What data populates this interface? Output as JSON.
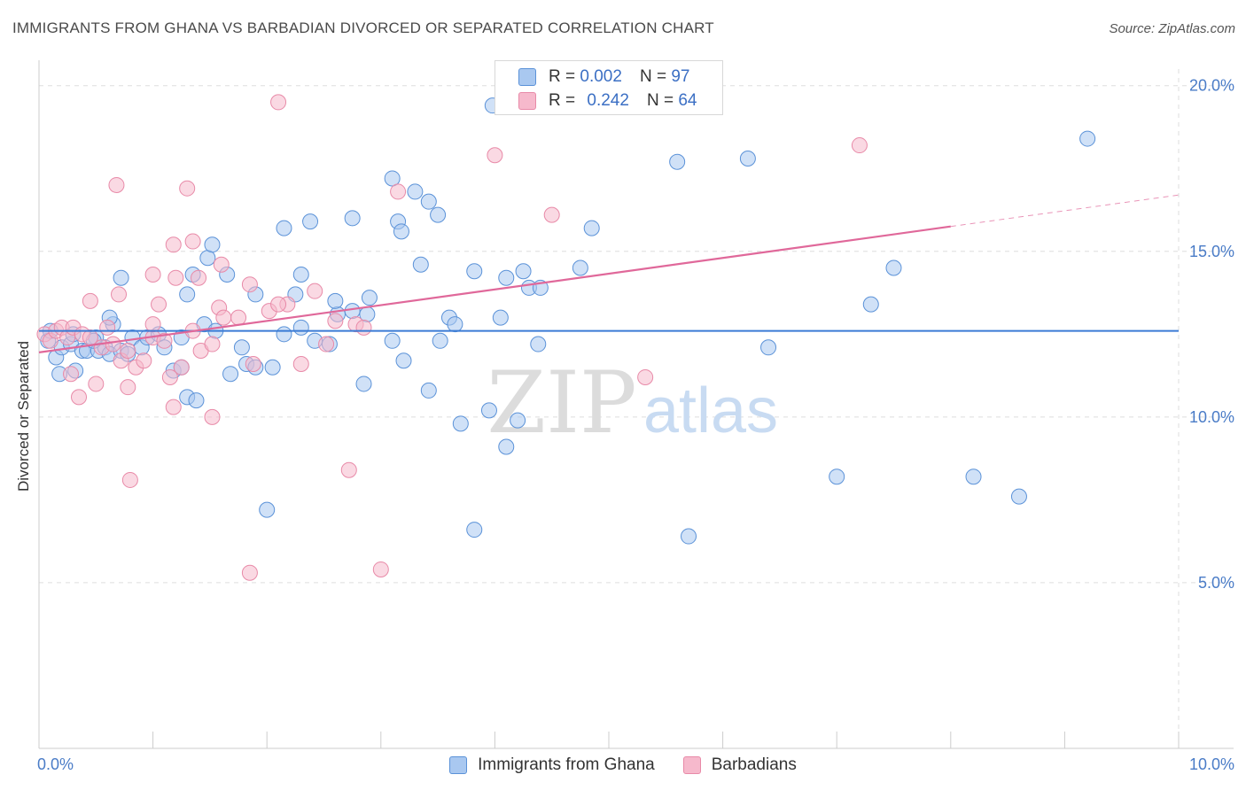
{
  "title": "IMMIGRANTS FROM GHANA VS BARBADIAN DIVORCED OR SEPARATED CORRELATION CHART",
  "source": "Source: ZipAtlas.com",
  "watermark": {
    "zip": "ZIP",
    "atlas": "atlas"
  },
  "colors": {
    "blue_fill": "#a9c8f0",
    "blue_stroke": "#5b92d8",
    "blue_line": "#3a7bd5",
    "pink_fill": "#f6b9cc",
    "pink_stroke": "#e88aa8",
    "pink_line": "#e0689a",
    "tick_text": "#4a7cc7",
    "grid": "#dddddd"
  },
  "legend": {
    "rows": [
      {
        "r_label": "R =",
        "r_value": "0.002",
        "n_label": "N =",
        "n_value": "97"
      },
      {
        "r_label": "R =",
        "r_value": "0.242",
        "n_label": "N =",
        "n_value": "64"
      }
    ]
  },
  "bottom_legend": [
    "Immigrants from Ghana",
    "Barbadians"
  ],
  "chart_data": {
    "type": "scatter",
    "title": "IMMIGRANTS FROM GHANA VS BARBADIAN DIVORCED OR SEPARATED CORRELATION CHART",
    "xlabel": "",
    "ylabel": "Divorced or Separated",
    "xlim": [
      0,
      10
    ],
    "ylim": [
      0,
      20.5
    ],
    "x_tick_labels": [
      {
        "value": 0,
        "label": "0.0%"
      },
      {
        "value": 10,
        "label": "10.0%"
      }
    ],
    "y_tick_labels": [
      {
        "value": 5,
        "label": "5.0%"
      },
      {
        "value": 10,
        "label": "10.0%"
      },
      {
        "value": 15,
        "label": "15.0%"
      },
      {
        "value": 20,
        "label": "20.0%"
      }
    ],
    "grid": true,
    "legend_position": "top-center",
    "series": [
      {
        "name": "Immigrants from Ghana",
        "trend": {
          "x0": 0,
          "y0": 12.6,
          "x1": 10,
          "y1": 12.6
        },
        "points": [
          [
            0.08,
            12.3
          ],
          [
            0.15,
            11.8
          ],
          [
            0.18,
            11.3
          ],
          [
            0.2,
            12.1
          ],
          [
            0.28,
            12.2
          ],
          [
            0.32,
            11.4
          ],
          [
            0.38,
            12.0
          ],
          [
            0.42,
            12.0
          ],
          [
            0.5,
            12.4
          ],
          [
            0.52,
            12.0
          ],
          [
            0.58,
            12.1
          ],
          [
            0.62,
            11.9
          ],
          [
            0.65,
            12.8
          ],
          [
            0.72,
            12.0
          ],
          [
            0.78,
            11.9
          ],
          [
            0.82,
            12.4
          ],
          [
            0.9,
            12.1
          ],
          [
            0.95,
            12.4
          ],
          [
            1.05,
            12.5
          ],
          [
            1.1,
            12.1
          ],
          [
            1.18,
            11.4
          ],
          [
            1.25,
            11.5
          ],
          [
            1.3,
            10.6
          ],
          [
            1.38,
            10.5
          ],
          [
            1.45,
            12.8
          ],
          [
            1.55,
            12.6
          ],
          [
            1.68,
            11.3
          ],
          [
            1.78,
            12.1
          ],
          [
            1.82,
            11.6
          ],
          [
            1.9,
            11.5
          ],
          [
            2.05,
            11.5
          ],
          [
            2.15,
            12.5
          ],
          [
            2.3,
            12.7
          ],
          [
            2.42,
            12.3
          ],
          [
            2.55,
            12.2
          ],
          [
            2.62,
            13.1
          ],
          [
            2.75,
            13.2
          ],
          [
            2.85,
            11.0
          ],
          [
            2.9,
            13.6
          ],
          [
            3.1,
            12.3
          ],
          [
            3.2,
            11.7
          ],
          [
            3.42,
            10.8
          ],
          [
            3.52,
            12.3
          ],
          [
            3.6,
            13.0
          ],
          [
            3.7,
            9.8
          ],
          [
            3.82,
            6.6
          ],
          [
            3.95,
            10.2
          ],
          [
            4.1,
            9.1
          ],
          [
            4.2,
            9.9
          ],
          [
            4.3,
            13.9
          ],
          [
            1.35,
            14.3
          ],
          [
            0.72,
            14.2
          ],
          [
            1.3,
            13.7
          ],
          [
            0.62,
            13.0
          ],
          [
            1.9,
            13.7
          ],
          [
            2.25,
            13.7
          ],
          [
            2.3,
            14.3
          ],
          [
            2.6,
            13.5
          ],
          [
            2.88,
            13.1
          ],
          [
            1.48,
            14.8
          ],
          [
            1.52,
            15.2
          ],
          [
            1.65,
            14.3
          ],
          [
            2.15,
            15.7
          ],
          [
            2.38,
            15.9
          ],
          [
            2.75,
            16.0
          ],
          [
            3.3,
            16.8
          ],
          [
            3.15,
            15.9
          ],
          [
            3.18,
            15.6
          ],
          [
            3.42,
            16.5
          ],
          [
            3.5,
            16.1
          ],
          [
            3.35,
            14.6
          ],
          [
            3.82,
            14.4
          ],
          [
            4.1,
            14.2
          ],
          [
            4.25,
            14.4
          ],
          [
            4.4,
            13.9
          ],
          [
            4.85,
            15.7
          ],
          [
            4.75,
            14.5
          ],
          [
            3.98,
            19.4
          ],
          [
            5.6,
            17.7
          ],
          [
            6.22,
            17.8
          ],
          [
            6.4,
            12.1
          ],
          [
            7.3,
            13.4
          ],
          [
            7.5,
            14.5
          ],
          [
            9.2,
            18.4
          ],
          [
            7.0,
            8.2
          ],
          [
            8.2,
            8.2
          ],
          [
            8.6,
            7.6
          ],
          [
            5.7,
            6.4
          ],
          [
            4.05,
            13.0
          ],
          [
            4.38,
            12.2
          ],
          [
            3.1,
            17.2
          ],
          [
            3.65,
            12.8
          ],
          [
            2.0,
            7.2
          ],
          [
            1.25,
            12.4
          ],
          [
            0.48,
            12.3
          ],
          [
            0.3,
            12.5
          ],
          [
            0.1,
            12.6
          ]
        ]
      },
      {
        "name": "Barbadians",
        "trend": {
          "x0": 0,
          "y0": 11.95,
          "x1": 8.0,
          "y1": 15.75,
          "ext_x1": 10,
          "ext_y1": 16.7
        },
        "points": [
          [
            0.05,
            12.5
          ],
          [
            0.1,
            12.3
          ],
          [
            0.15,
            12.6
          ],
          [
            0.2,
            12.7
          ],
          [
            0.25,
            12.4
          ],
          [
            0.3,
            12.7
          ],
          [
            0.38,
            12.5
          ],
          [
            0.45,
            12.4
          ],
          [
            0.5,
            11.0
          ],
          [
            0.55,
            12.1
          ],
          [
            0.6,
            12.7
          ],
          [
            0.65,
            12.2
          ],
          [
            0.72,
            11.7
          ],
          [
            0.78,
            12.0
          ],
          [
            0.85,
            11.5
          ],
          [
            0.92,
            11.7
          ],
          [
            1.0,
            12.4
          ],
          [
            1.05,
            13.4
          ],
          [
            1.1,
            12.3
          ],
          [
            1.18,
            10.3
          ],
          [
            1.25,
            11.5
          ],
          [
            1.35,
            12.6
          ],
          [
            1.42,
            12.0
          ],
          [
            1.52,
            12.2
          ],
          [
            1.58,
            13.3
          ],
          [
            1.62,
            13.0
          ],
          [
            1.75,
            13.0
          ],
          [
            1.88,
            11.6
          ],
          [
            2.02,
            13.2
          ],
          [
            2.18,
            13.4
          ],
          [
            2.3,
            11.6
          ],
          [
            2.42,
            13.8
          ],
          [
            2.52,
            12.2
          ],
          [
            2.6,
            12.9
          ],
          [
            2.78,
            12.8
          ],
          [
            2.85,
            12.7
          ],
          [
            0.45,
            13.5
          ],
          [
            0.7,
            13.7
          ],
          [
            1.0,
            14.3
          ],
          [
            1.2,
            14.2
          ],
          [
            1.4,
            14.2
          ],
          [
            1.6,
            14.6
          ],
          [
            1.35,
            15.3
          ],
          [
            1.18,
            15.2
          ],
          [
            1.3,
            16.9
          ],
          [
            0.68,
            17.0
          ],
          [
            1.85,
            14.0
          ],
          [
            2.1,
            13.4
          ],
          [
            2.72,
            8.4
          ],
          [
            1.52,
            10.0
          ],
          [
            0.8,
            8.1
          ],
          [
            1.85,
            5.3
          ],
          [
            3.0,
            5.4
          ],
          [
            3.15,
            16.8
          ],
          [
            4.0,
            17.9
          ],
          [
            4.5,
            16.1
          ],
          [
            5.32,
            11.2
          ],
          [
            7.2,
            18.2
          ],
          [
            2.1,
            19.5
          ],
          [
            1.0,
            12.8
          ],
          [
            1.15,
            11.2
          ],
          [
            0.78,
            10.9
          ],
          [
            0.35,
            10.6
          ],
          [
            0.28,
            11.3
          ]
        ]
      }
    ]
  }
}
